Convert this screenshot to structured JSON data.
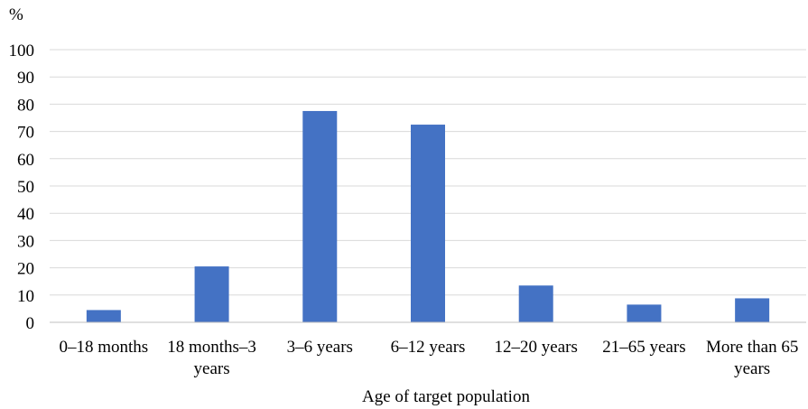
{
  "chart_data": {
    "type": "bar",
    "categories": [
      [
        "0–18 months"
      ],
      [
        "18 months–3",
        "years"
      ],
      [
        "3–6 years"
      ],
      [
        "6–12 years"
      ],
      [
        "12–20 years"
      ],
      [
        "21–65 years"
      ],
      [
        "More than 65",
        "years"
      ]
    ],
    "values": [
      4.5,
      20.5,
      77.5,
      72.5,
      13.5,
      6.5,
      8.8
    ],
    "ylim": [
      0,
      100
    ],
    "yticks": [
      0,
      10,
      20,
      30,
      40,
      50,
      60,
      70,
      80,
      90,
      100
    ],
    "yunit": "%",
    "xlabel": "Age of target population",
    "grid": true,
    "legend": "none",
    "colors": {
      "bar": "#4472C4",
      "grid": "#D9D9D9",
      "axis": "#BFBFBF"
    }
  }
}
